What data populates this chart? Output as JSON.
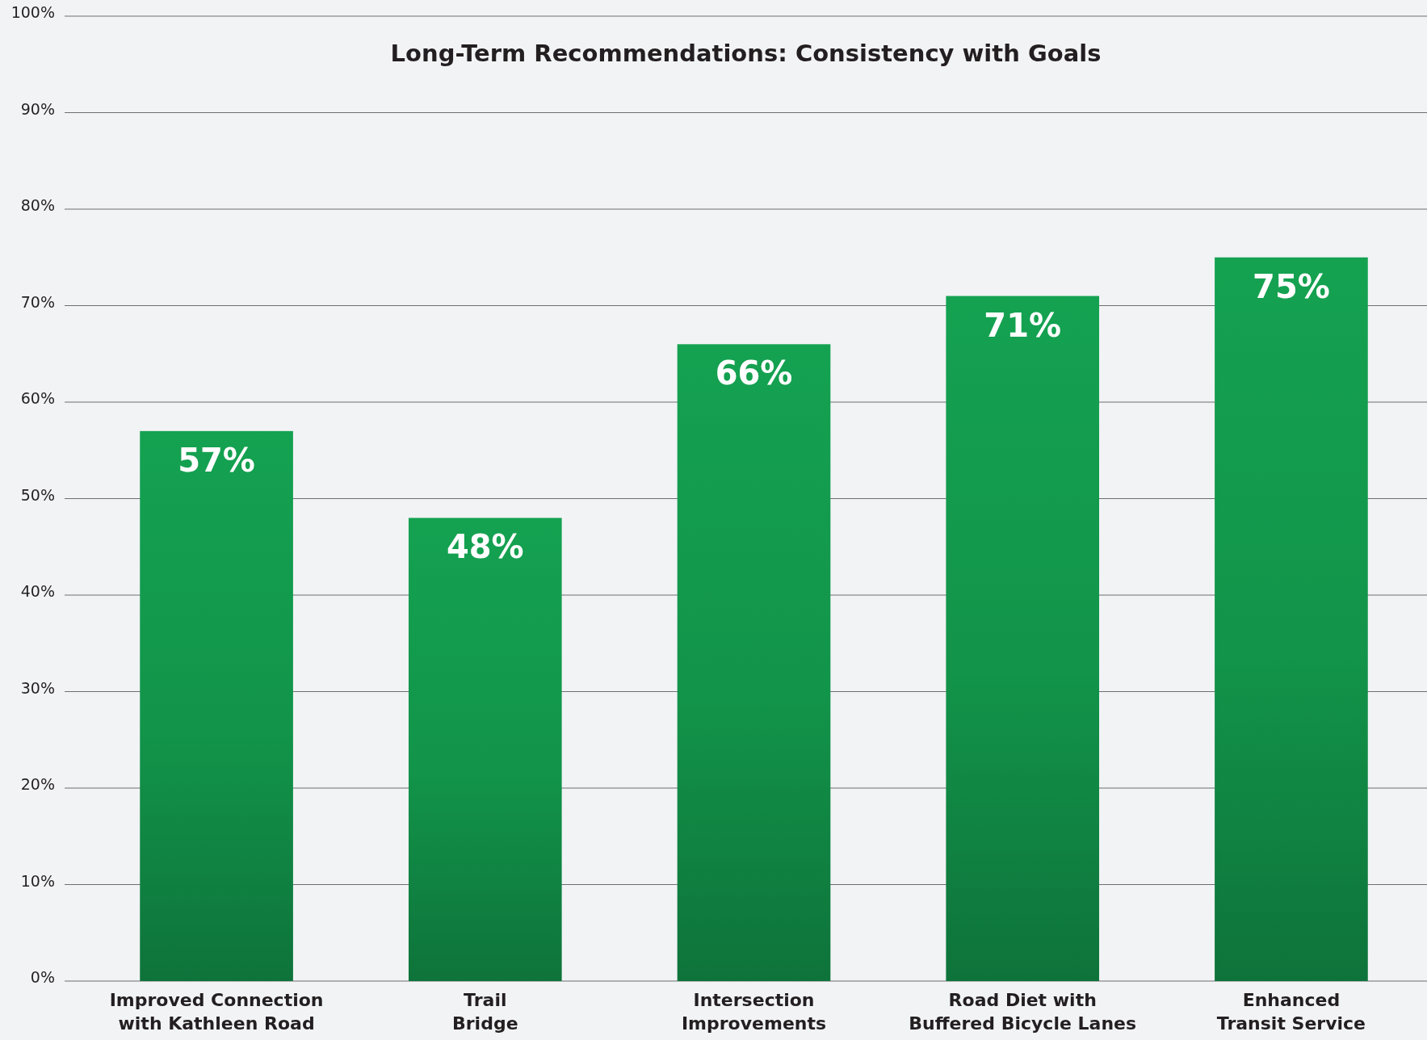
{
  "chart_data": {
    "type": "bar",
    "title": "Long-Term Recommendations: Consistency with Goals",
    "categories": [
      "Improved Connection with Kathleen Road",
      "Trail Bridge",
      "Intersection Improvements",
      "Road Diet with Buffered Bicycle Lanes",
      "Enhanced Transit Service"
    ],
    "values": [
      57,
      48,
      66,
      71,
      75
    ],
    "value_labels": [
      "57%",
      "48%",
      "66%",
      "71%",
      "75%"
    ],
    "color": "#12944a",
    "ylim": [
      0,
      100
    ],
    "yticks": [
      {
        "value": 0,
        "label": "0%"
      },
      {
        "value": 10,
        "label": "10%"
      },
      {
        "value": 20,
        "label": "20%"
      },
      {
        "value": 30,
        "label": "30%"
      },
      {
        "value": 40,
        "label": "40%"
      },
      {
        "value": 50,
        "label": "50%"
      },
      {
        "value": 60,
        "label": "60%"
      },
      {
        "value": 70,
        "label": "70%"
      },
      {
        "value": 80,
        "label": "80%"
      },
      {
        "value": 90,
        "label": "90%"
      },
      {
        "value": 100,
        "label": "100%"
      }
    ],
    "grid": "y"
  }
}
